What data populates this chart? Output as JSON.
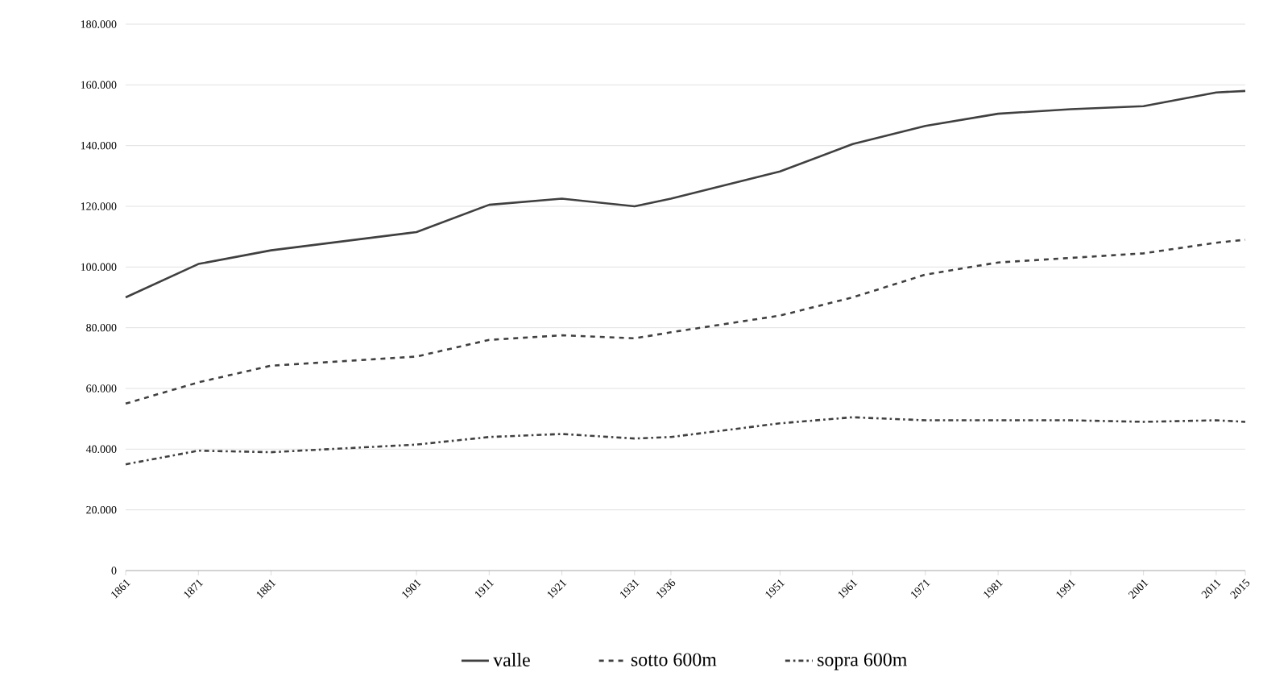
{
  "chart_data": {
    "type": "line",
    "x": [
      1861,
      1871,
      1881,
      1901,
      1911,
      1921,
      1931,
      1936,
      1951,
      1961,
      1971,
      1981,
      1991,
      2001,
      2011,
      2015
    ],
    "series": [
      {
        "name": "valle",
        "color": "#404040",
        "line_style": "solid",
        "values": [
          90000,
          101000,
          105500,
          111500,
          120500,
          122500,
          120000,
          122500,
          131500,
          140500,
          146500,
          150500,
          152000,
          153000,
          157500,
          158000
        ]
      },
      {
        "name": "sotto 600m",
        "color": "#404040",
        "line_style": "dashed",
        "values": [
          55000,
          62000,
          67500,
          70500,
          76000,
          77500,
          76500,
          78500,
          84000,
          90000,
          97500,
          101500,
          103000,
          104500,
          108000,
          109000
        ]
      },
      {
        "name": "sopra 600m",
        "color": "#404040",
        "line_style": "dashdot",
        "values": [
          35000,
          39500,
          39000,
          41500,
          44000,
          45000,
          43500,
          44000,
          48500,
          50500,
          49500,
          49500,
          49500,
          49000,
          49500,
          49000
        ]
      }
    ],
    "xlim": [
      1861,
      2015
    ],
    "xticks": [
      1861,
      1871,
      1881,
      1901,
      1911,
      1921,
      1931,
      1936,
      1951,
      1961,
      1971,
      1981,
      1991,
      2001,
      2011,
      2015
    ],
    "ylim": [
      0,
      180000
    ],
    "yticks": [
      {
        "value": 0,
        "label": "0"
      },
      {
        "value": 20000,
        "label": "20.000"
      },
      {
        "value": 40000,
        "label": "40.000"
      },
      {
        "value": 60000,
        "label": "60.000"
      },
      {
        "value": 80000,
        "label": "80.000"
      },
      {
        "value": 100000,
        "label": "100.000"
      },
      {
        "value": 120000,
        "label": "120.000"
      },
      {
        "value": 140000,
        "label": "140.000"
      },
      {
        "value": 160000,
        "label": "160.000"
      },
      {
        "value": 180000,
        "label": "180.000"
      }
    ],
    "grid": "y",
    "legend": "bottom",
    "marker": "none"
  }
}
